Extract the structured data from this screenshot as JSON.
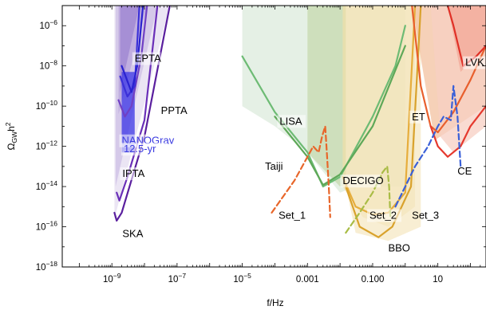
{
  "chart_data": {
    "type": "line",
    "xlabel": "f/Hz",
    "ylabel": "Ω_GW h^2",
    "x_scale": "log",
    "y_scale": "log",
    "xlim": [
      3e-11,
      300
    ],
    "ylim": [
      1e-18,
      1e-05
    ],
    "x_ticks": [
      {
        "value": 1e-09,
        "label": "10^-9"
      },
      {
        "value": 1e-07,
        "label": "10^-7"
      },
      {
        "value": 1e-05,
        "label": "10^-5"
      },
      {
        "value": 0.001,
        "label": "0.001"
      },
      {
        "value": 0.1,
        "label": "0.100"
      },
      {
        "value": 10,
        "label": "10"
      }
    ],
    "y_ticks": [
      {
        "value": 1e-06,
        "label": "10^-6"
      },
      {
        "value": 1e-08,
        "label": "10^-8"
      },
      {
        "value": 1e-10,
        "label": "10^-10"
      },
      {
        "value": 1e-12,
        "label": "10^-12"
      },
      {
        "value": 1e-14,
        "label": "10^-14"
      },
      {
        "value": 1e-16,
        "label": "10^-16"
      },
      {
        "value": 1e-18,
        "label": "10^-18"
      }
    ],
    "regions": [
      {
        "name": "SKA",
        "color": "#e4dcf0",
        "points": [
          [
            1.2e-09,
            1e-05
          ],
          [
            6e-08,
            1e-05
          ],
          [
            1.2e-09,
            2.5e-16
          ]
        ]
      },
      {
        "name": "IPTA",
        "color": "#cdbfe6",
        "points": [
          [
            1.3e-09,
            1e-05
          ],
          [
            2.5e-08,
            1e-05
          ],
          [
            1.3e-09,
            1e-14
          ]
        ]
      },
      {
        "name": "PPTA",
        "color": "#b8a4dc",
        "points": [
          [
            1.6e-09,
            1e-05
          ],
          [
            1.2e-08,
            1e-05
          ],
          [
            1.6e-09,
            4e-11
          ]
        ]
      },
      {
        "name": "EPTA",
        "color": "#9d84d2",
        "points": [
          [
            1.8e-09,
            1e-05
          ],
          [
            7e-09,
            1e-05
          ],
          [
            1.8e-09,
            5e-10
          ]
        ]
      },
      {
        "name": "NANOGrav 12.5-yr",
        "color": "#3b34e6",
        "points": [
          [
            2e-09,
            5e-09
          ],
          [
            5e-09,
            5e-09
          ],
          [
            5e-09,
            5e-13
          ],
          [
            2e-09,
            5e-13
          ]
        ]
      },
      {
        "name": "LISA",
        "color": "#dcebdc",
        "points": [
          [
            1e-05,
            1e-05
          ],
          [
            1,
            1e-05
          ],
          [
            1,
            1e-13
          ],
          [
            0.01,
            5e-15
          ],
          [
            0.001,
            5e-13
          ],
          [
            0.0001,
            1e-11
          ],
          [
            1e-05,
            1e-10
          ]
        ]
      },
      {
        "name": "Taiji",
        "color": "#c5d9ae",
        "points": [
          [
            0.001,
            1e-05
          ],
          [
            1,
            1e-05
          ],
          [
            1,
            1e-14
          ],
          [
            0.01,
            1e-14
          ],
          [
            0.001,
            5e-13
          ]
        ]
      },
      {
        "name": "DECIGO",
        "color": "#efdfaa",
        "points": [
          [
            0.012,
            1e-05
          ],
          [
            2,
            1e-05
          ],
          [
            2,
            1e-15
          ],
          [
            0.3,
            1e-16
          ],
          [
            0.05,
            3e-16
          ],
          [
            0.012,
            1e-14
          ]
        ]
      },
      {
        "name": "BBO",
        "color": "#f5e8c4",
        "points": [
          [
            0.015,
            1e-05
          ],
          [
            3,
            1e-05
          ],
          [
            3,
            1e-16
          ],
          [
            0.3,
            2e-17
          ],
          [
            0.03,
            5e-17
          ],
          [
            0.015,
            1e-14
          ]
        ]
      },
      {
        "name": "ET",
        "color": "#f3c1a0",
        "points": [
          [
            1.6,
            1e-05
          ],
          [
            300,
            1e-05
          ],
          [
            300,
            1e-10
          ],
          [
            8,
            2e-12
          ]
        ]
      },
      {
        "name": "CE",
        "color": "#f7cfc3",
        "points": [
          [
            6,
            1e-05
          ],
          [
            300,
            1e-05
          ],
          [
            300,
            1e-11
          ],
          [
            30,
            5e-13
          ],
          [
            12,
            3e-12
          ]
        ]
      },
      {
        "name": "LVK",
        "color": "#f3a898",
        "points": [
          [
            20,
            1e-05
          ],
          [
            300,
            1e-05
          ],
          [
            300,
            1e-07
          ],
          [
            50,
            5e-09
          ]
        ]
      }
    ],
    "series": [
      {
        "name": "SKA",
        "color": "#5a1f9e",
        "width": 2.2,
        "dash": false,
        "points": [
          [
            1.2e-09,
            5e-16
          ],
          [
            1.4e-09,
            2e-16
          ],
          [
            2e-09,
            5e-16
          ],
          [
            1e-08,
            3e-12
          ],
          [
            6e-08,
            1e-05
          ]
        ]
      },
      {
        "name": "IPTA",
        "color": "#6a2fb8",
        "width": 2.2,
        "dash": false,
        "points": [
          [
            1.4e-09,
            5e-15
          ],
          [
            1.7e-09,
            2e-15
          ],
          [
            3e-09,
            3e-14
          ],
          [
            1e-08,
            2e-11
          ],
          [
            2.5e-08,
            1e-05
          ]
        ]
      },
      {
        "name": "PPTA",
        "color": "#7040c4",
        "width": 2.2,
        "dash": false,
        "points": [
          [
            1.6e-09,
            2e-10
          ],
          [
            2.5e-09,
            3e-11
          ],
          [
            4e-09,
            1e-10
          ],
          [
            8e-09,
            3e-08
          ],
          [
            1.2e-08,
            1e-05
          ]
        ]
      },
      {
        "name": "EPTA",
        "color": "#3b30d8",
        "width": 2.2,
        "dash": false,
        "points": [
          [
            1.8e-09,
            3e-09
          ],
          [
            3e-09,
            3e-10
          ],
          [
            5e-09,
            1e-09
          ],
          [
            7e-09,
            1e-05
          ]
        ]
      },
      {
        "name": "NANOGrav 12.5-yr",
        "color": "#2a22d0",
        "width": 2.2,
        "dash": false,
        "points": [
          [
            2e-09,
            1e-08
          ],
          [
            4e-09,
            5e-10
          ],
          [
            6e-09,
            1e-08
          ],
          [
            9e-09,
            1e-05
          ]
        ]
      },
      {
        "name": "LISA",
        "color": "#6dbb74",
        "width": 2.2,
        "dash": false,
        "points": [
          [
            1e-05,
            3e-08
          ],
          [
            0.0001,
            5e-11
          ],
          [
            0.001,
            5e-13
          ],
          [
            0.003,
            1e-14
          ],
          [
            0.01,
            3e-14
          ],
          [
            0.1,
            3e-11
          ],
          [
            0.5,
            1e-08
          ],
          [
            1,
            1e-06
          ]
        ]
      },
      {
        "name": "Taiji",
        "color": "#5ea858",
        "width": 2.2,
        "dash": false,
        "points": [
          [
            0.0001,
            3e-11
          ],
          [
            0.001,
            3e-13
          ],
          [
            0.003,
            1.2e-14
          ],
          [
            0.01,
            4e-14
          ],
          [
            0.1,
            1e-11
          ],
          [
            1,
            1e-07
          ]
        ]
      },
      {
        "name": "DECIGO",
        "color": "#e6ad3c",
        "width": 2.2,
        "dash": false,
        "points": [
          [
            0.012,
            3e-14
          ],
          [
            0.03,
            1e-15
          ],
          [
            0.1,
            4e-16
          ],
          [
            0.3,
            5e-16
          ],
          [
            1,
            5e-15
          ],
          [
            2,
            1e-05
          ]
        ]
      },
      {
        "name": "BBO",
        "color": "#d9a22c",
        "width": 2.2,
        "dash": false,
        "points": [
          [
            0.015,
            1e-14
          ],
          [
            0.04,
            1e-16
          ],
          [
            0.15,
            3e-17
          ],
          [
            0.4,
            1e-16
          ],
          [
            1.5,
            1e-14
          ],
          [
            3,
            1e-05
          ]
        ]
      },
      {
        "name": "ET",
        "color": "#e85f2d",
        "width": 2.2,
        "dash": false,
        "points": [
          [
            1.6,
            1e-05
          ],
          [
            3,
            1e-09
          ],
          [
            6,
            1e-11
          ],
          [
            10,
            5e-12
          ],
          [
            30,
            5e-11
          ],
          [
            100,
            2e-09
          ],
          [
            300,
            1e-07
          ]
        ]
      },
      {
        "name": "CE",
        "color": "#e5392e",
        "width": 2.2,
        "dash": false,
        "points": [
          [
            6,
            1e-11
          ],
          [
            10,
            1e-12
          ],
          [
            20,
            3e-13
          ],
          [
            50,
            1e-12
          ],
          [
            100,
            1e-11
          ],
          [
            300,
            1e-10
          ]
        ]
      },
      {
        "name": "LVK",
        "color": "#e03026",
        "width": 2.2,
        "dash": false,
        "points": [
          [
            20,
            1e-05
          ],
          [
            30,
            1e-06
          ],
          [
            60,
            1e-08
          ],
          [
            150,
            3e-08
          ],
          [
            300,
            1e-07
          ]
        ]
      },
      {
        "name": "Set_1",
        "color": "#e8662a",
        "width": 2.2,
        "dash": true,
        "points": [
          [
            8e-05,
            5e-16
          ],
          [
            0.0004,
            2e-14
          ],
          [
            0.001,
            3e-13
          ],
          [
            0.0015,
            1e-12
          ],
          [
            0.0022,
            5e-13
          ],
          [
            0.0028,
            3e-12
          ],
          [
            0.0035,
            1e-11
          ],
          [
            0.004,
            3e-13
          ],
          [
            0.0045,
            1e-14
          ],
          [
            0.005,
            3e-16
          ]
        ]
      },
      {
        "name": "Set_2",
        "color": "#a9bc45",
        "width": 2.2,
        "dash": true,
        "points": [
          [
            0.015,
            5e-17
          ],
          [
            0.04,
            5e-16
          ],
          [
            0.1,
            5e-15
          ],
          [
            0.2,
            5e-14
          ],
          [
            0.28,
            1e-13
          ],
          [
            0.32,
            1e-14
          ],
          [
            0.35,
            3e-16
          ]
        ]
      },
      {
        "name": "Set_3",
        "color": "#3a60d8",
        "width": 2.2,
        "dash": true,
        "points": [
          [
            0.5,
            1e-15
          ],
          [
            1,
            1e-14
          ],
          [
            2,
            1e-13
          ],
          [
            5,
            1e-12
          ],
          [
            10,
            1e-11
          ],
          [
            15,
            3e-11
          ],
          [
            25,
            2e-11
          ],
          [
            30,
            1e-09
          ],
          [
            40,
            3e-11
          ],
          [
            50,
            1e-13
          ]
        ]
      }
    ],
    "labels": [
      {
        "text": "EPTA",
        "x": 5e-09,
        "y": 1.6e-08,
        "color": "#000000",
        "bg": true
      },
      {
        "text": "PPTA",
        "x": 3.2e-08,
        "y": 4e-11,
        "color": "#000000",
        "bg": true
      },
      {
        "text": "NANOGrav",
        "x": 2e-09,
        "y": 1.3e-12,
        "color": "#3a3ae0",
        "bg": true
      },
      {
        "text": "12.5-yr",
        "x": 2.3e-09,
        "y": 5e-13,
        "color": "#3a3ae0",
        "bg": true
      },
      {
        "text": "IPTA",
        "x": 2.1e-09,
        "y": 3e-14,
        "color": "#000000",
        "bg": true
      },
      {
        "text": "SKA",
        "x": 2.1e-09,
        "y": 3e-17,
        "color": "#000000",
        "bg": false
      },
      {
        "text": "LISA",
        "x": 0.00014,
        "y": 1.2e-11,
        "color": "#000000",
        "bg": true
      },
      {
        "text": "Taiji",
        "x": 5e-05,
        "y": 7e-14,
        "color": "#000000",
        "bg": false
      },
      {
        "text": "DECIGO",
        "x": 0.012,
        "y": 1.3e-14,
        "color": "#000000",
        "bg": true
      },
      {
        "text": "Set_1",
        "x": 0.00013,
        "y": 2.5e-16,
        "color": "#000000",
        "bg": false
      },
      {
        "text": "Set_2",
        "x": 0.08,
        "y": 2.5e-16,
        "color": "#000000",
        "bg": true
      },
      {
        "text": "Set_3",
        "x": 1.6,
        "y": 2.5e-16,
        "color": "#000000",
        "bg": false
      },
      {
        "text": "BBO",
        "x": 0.3,
        "y": 6e-18,
        "color": "#000000",
        "bg": false
      },
      {
        "text": "ET",
        "x": 1.6,
        "y": 2e-11,
        "color": "#000000",
        "bg": true
      },
      {
        "text": "CE",
        "x": 40,
        "y": 4e-14,
        "color": "#000000",
        "bg": false
      },
      {
        "text": "LVK",
        "x": 70,
        "y": 1e-08,
        "color": "#000000",
        "bg": true
      }
    ],
    "grid": false,
    "legend": "none"
  }
}
